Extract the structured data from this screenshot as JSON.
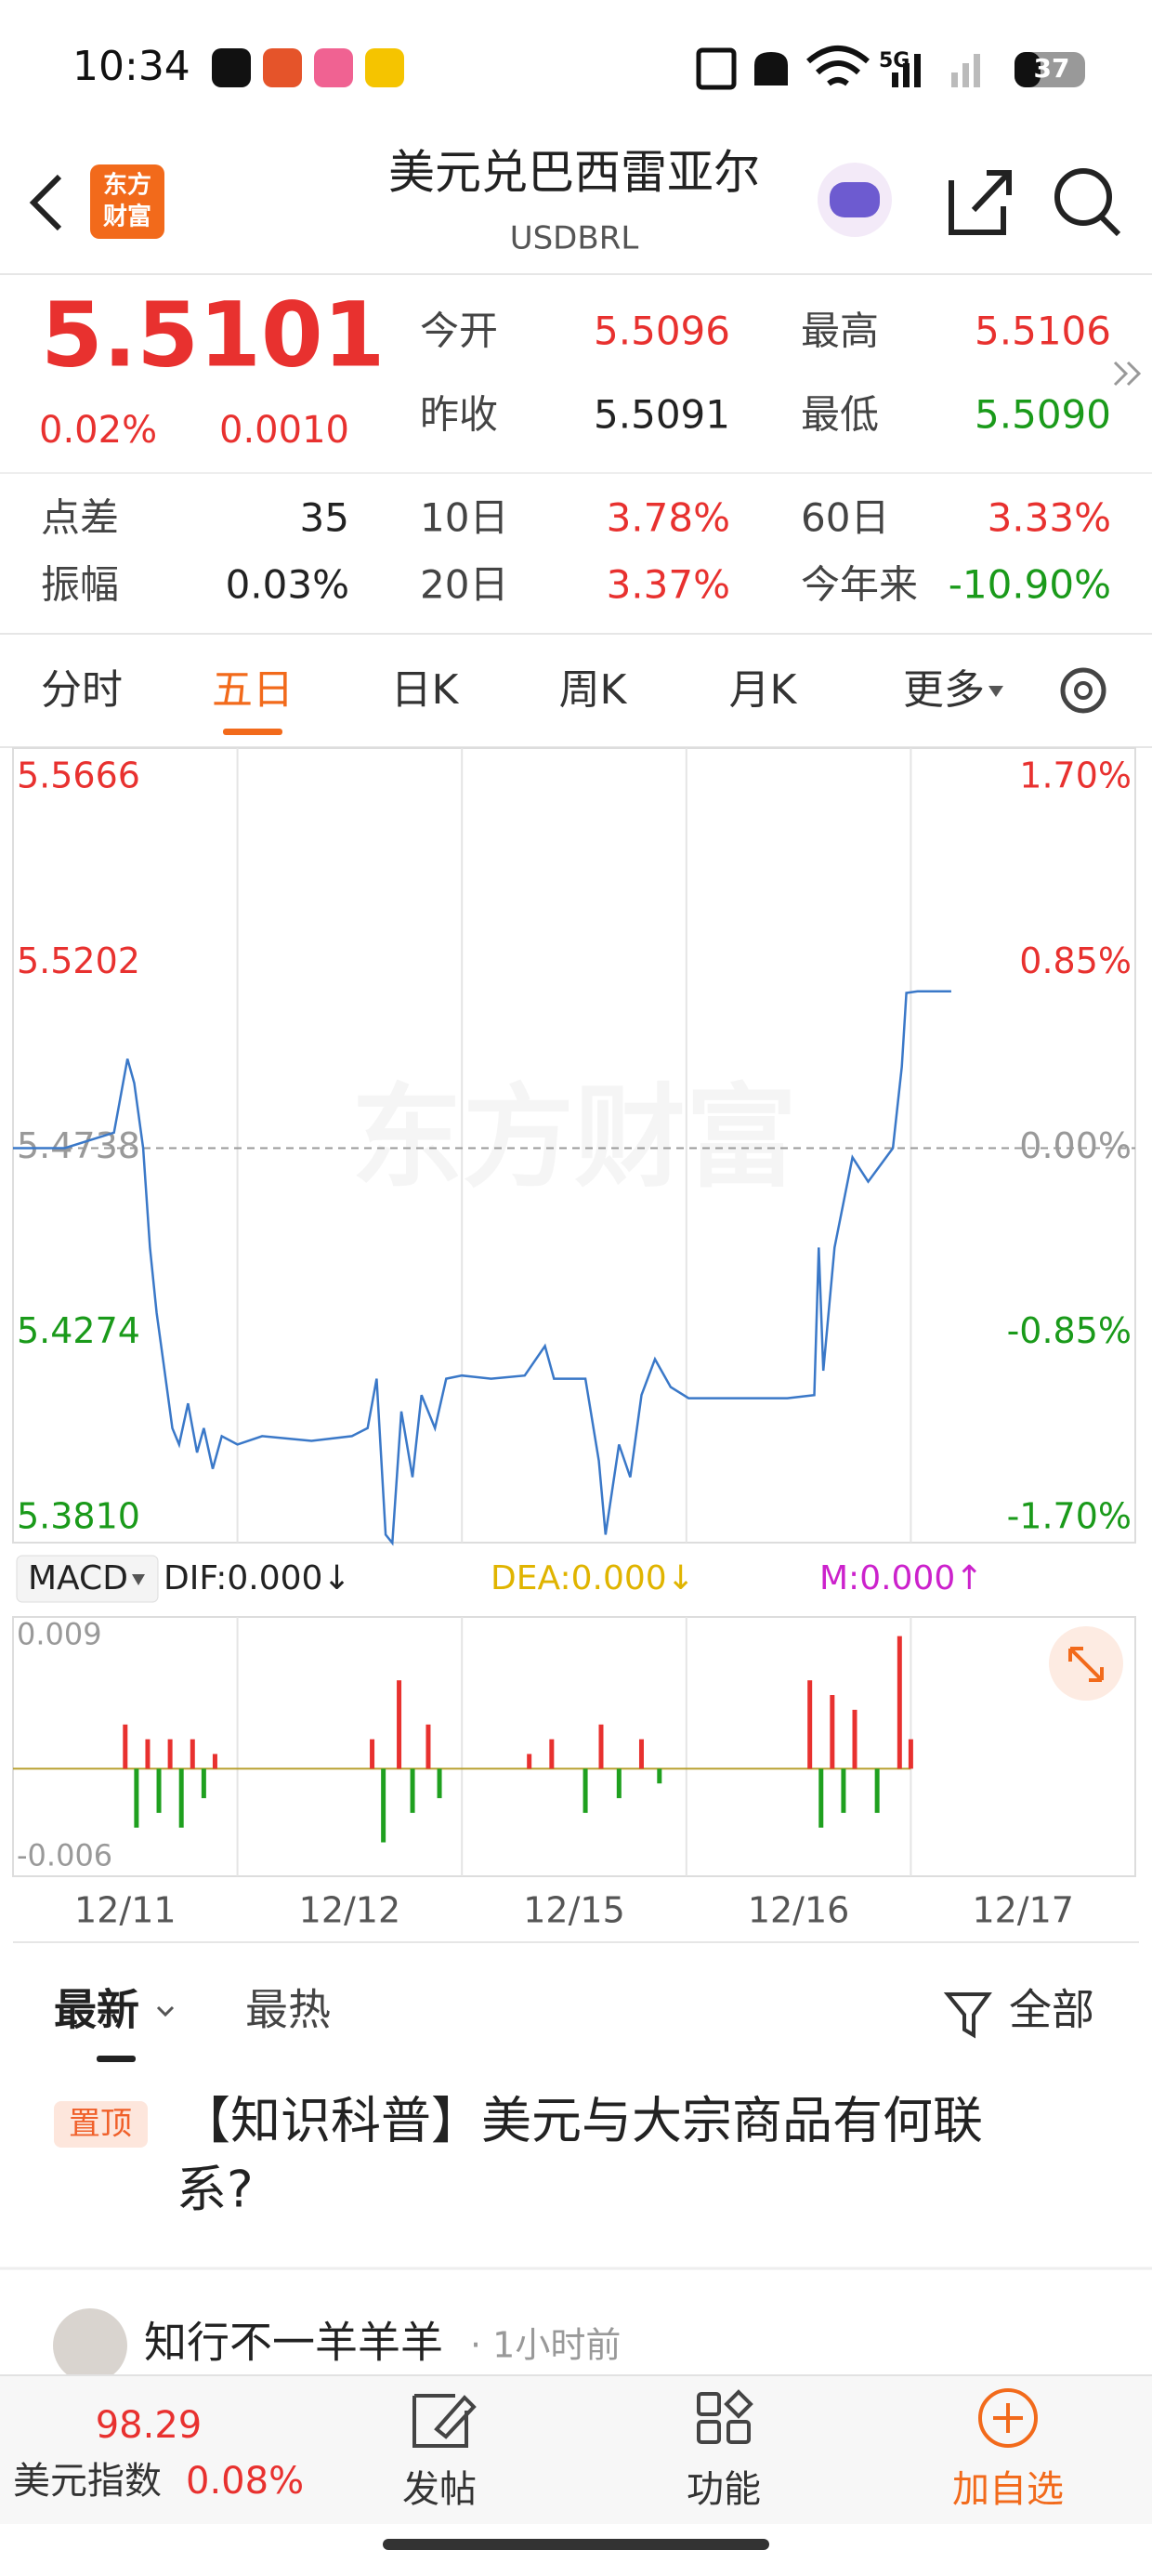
{
  "status_bar": {
    "time": "10:34",
    "network": "5G",
    "battery": "37"
  },
  "header": {
    "logo": [
      "东方",
      "财富"
    ],
    "title": "美元兑巴西雷亚尔",
    "symbol": "USDBRL"
  },
  "quote": {
    "price": "5.5101",
    "change_pct": "0.02%",
    "change": "0.0010",
    "stats": [
      {
        "label": "今开",
        "value": "5.5096",
        "color": "#e8312f"
      },
      {
        "label": "最高",
        "value": "5.5106",
        "color": "#e8312f"
      },
      {
        "label": "昨收",
        "value": "5.5091",
        "color": "#222222"
      },
      {
        "label": "最低",
        "value": "5.5090",
        "color": "#1a9a1a"
      },
      {
        "label": "点差",
        "value": "35",
        "color": "#222222"
      },
      {
        "label": "10日",
        "value": "3.78%",
        "color": "#e8312f"
      },
      {
        "label": "60日",
        "value": "3.33%",
        "color": "#e8312f"
      },
      {
        "label": "振幅",
        "value": "0.03%",
        "color": "#222222"
      },
      {
        "label": "20日",
        "value": "3.37%",
        "color": "#e8312f"
      },
      {
        "label": "今年来",
        "value": "-10.90%",
        "color": "#1a9a1a"
      }
    ]
  },
  "tabs": {
    "items": [
      "分时",
      "五日",
      "日K",
      "周K",
      "月K",
      "更多"
    ],
    "active": 1
  },
  "watermark": "东方财富",
  "chart_data": [
    {
      "type": "line",
      "x": [
        0,
        0.23,
        0.45,
        0.51,
        0.54,
        0.58,
        0.61,
        0.64,
        0.67,
        0.71,
        0.74,
        0.78,
        0.82,
        0.85,
        0.89,
        0.93,
        1.0,
        1.11,
        1.33,
        1.51,
        1.58,
        1.62,
        1.66,
        1.69,
        1.73,
        1.78,
        1.82,
        1.88,
        1.93,
        2.0,
        2.13,
        2.28,
        2.37,
        2.41,
        2.55,
        2.61,
        2.64,
        2.7,
        2.75,
        2.8,
        2.86,
        2.93,
        3.01,
        3.23,
        3.45,
        3.57,
        3.59,
        3.61,
        3.66,
        3.74,
        3.81,
        3.92,
        3.96,
        3.98,
        4.03,
        4.18
      ],
      "series": [
        {
          "color": "#3a78c8",
          "values": [
            5.4738,
            5.4738,
            5.4777,
            5.4962,
            5.4901,
            5.4738,
            5.4489,
            5.4325,
            5.4201,
            5.4036,
            5.3995,
            5.4098,
            5.3975,
            5.4036,
            5.3934,
            5.4016,
            5.3995,
            5.4016,
            5.4004,
            5.4016,
            5.4036,
            5.416,
            5.3769,
            5.3748,
            5.4078,
            5.3913,
            5.4119,
            5.4036,
            5.416,
            5.4168,
            5.416,
            5.4168,
            5.4242,
            5.416,
            5.416,
            5.3954,
            5.3769,
            5.3995,
            5.3913,
            5.4119,
            5.4209,
            5.4139,
            5.4111,
            5.4111,
            5.4111,
            5.4119,
            5.4489,
            5.418,
            5.4489,
            5.4715,
            5.4654,
            5.4738,
            5.4942,
            5.5127,
            5.5131,
            5.5131
          ]
        }
      ],
      "xlim": [
        0,
        5
      ],
      "xticks": [
        {
          "value": 0.5,
          "label": "12/11"
        },
        {
          "value": 1.5,
          "label": "12/12"
        },
        {
          "value": 2.5,
          "label": "12/15"
        },
        {
          "value": 3.5,
          "label": "12/16"
        },
        {
          "value": 4.5,
          "label": "12/17"
        }
      ],
      "ylim": [
        5.3749,
        5.5741
      ],
      "yticks": [
        5.5666,
        5.5202,
        5.4738,
        5.4274,
        {
          "value": 5.381,
          "label": "5.3810"
        }
      ],
      "y2lim": [
        -1.812,
        1.837
      ],
      "y2ticks": [
        {
          "value": 1.7,
          "label": "1.70%"
        },
        {
          "value": 0.85,
          "label": "0.85%"
        },
        {
          "value": 0,
          "label": "0.00%"
        },
        {
          "value": -0.85,
          "label": "-0.85%"
        },
        {
          "value": -1.7,
          "label": "-1.70%"
        }
      ]
    },
    {
      "type": "bar",
      "indicator": "MACD",
      "legend": [
        "DIF:0.000↓",
        "DEA:0.000↓",
        "M:0.000↑"
      ],
      "x": [
        0.5,
        0.55,
        0.6,
        0.65,
        0.7,
        0.75,
        0.8,
        0.85,
        0.9,
        1.6,
        1.65,
        1.72,
        1.78,
        1.85,
        1.9,
        2.3,
        2.4,
        2.55,
        2.62,
        2.7,
        2.8,
        2.88,
        3.55,
        3.6,
        3.65,
        3.7,
        3.75,
        3.85,
        3.95,
        4.0
      ],
      "values": [
        0.003,
        -0.004,
        0.002,
        -0.003,
        0.002,
        -0.004,
        0.002,
        -0.002,
        0.001,
        0.002,
        -0.005,
        0.006,
        -0.003,
        0.003,
        -0.002,
        0.001,
        0.002,
        -0.003,
        0.003,
        -0.002,
        0.002,
        -0.001,
        0.006,
        -0.004,
        0.005,
        -0.003,
        0.004,
        -0.003,
        0.009,
        0.002
      ],
      "up_color": "#e8312f",
      "down_color": "#1fa01f",
      "xlim": [
        0,
        5
      ],
      "ylim": [
        -0.0073,
        0.0103
      ],
      "yticks": [
        0.009,
        -0.006
      ]
    }
  ],
  "feed": {
    "tabs": [
      "最新",
      "最热"
    ],
    "filter": "全部",
    "pinned": {
      "tag": "置顶",
      "title_lines": [
        "【知识科普】美元与大宗商品有何联",
        "系?"
      ]
    },
    "post": {
      "author": "知行不一羊羊羊",
      "time": "· 1小时前"
    }
  },
  "bottom_bar": {
    "index_value": "98.29",
    "index_name": "美元指数",
    "index_change": "0.08%",
    "actions": [
      "发帖",
      "功能",
      "加自选"
    ]
  }
}
